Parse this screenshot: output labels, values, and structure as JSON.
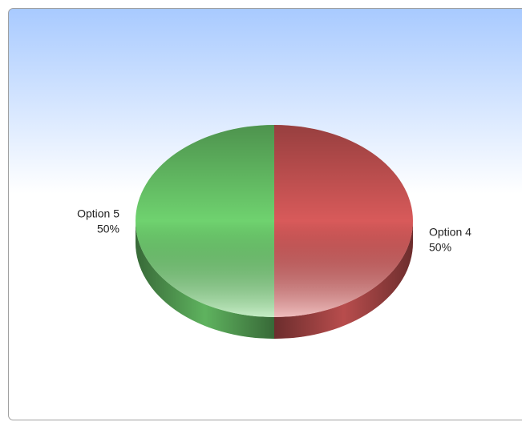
{
  "chart_data": {
    "type": "pie",
    "categories": [
      "Option 4",
      "Option 5"
    ],
    "values": [
      50,
      50
    ],
    "value_labels": [
      "50%",
      "50%"
    ],
    "colors": [
      "#d85a5a",
      "#6fd26f"
    ]
  }
}
